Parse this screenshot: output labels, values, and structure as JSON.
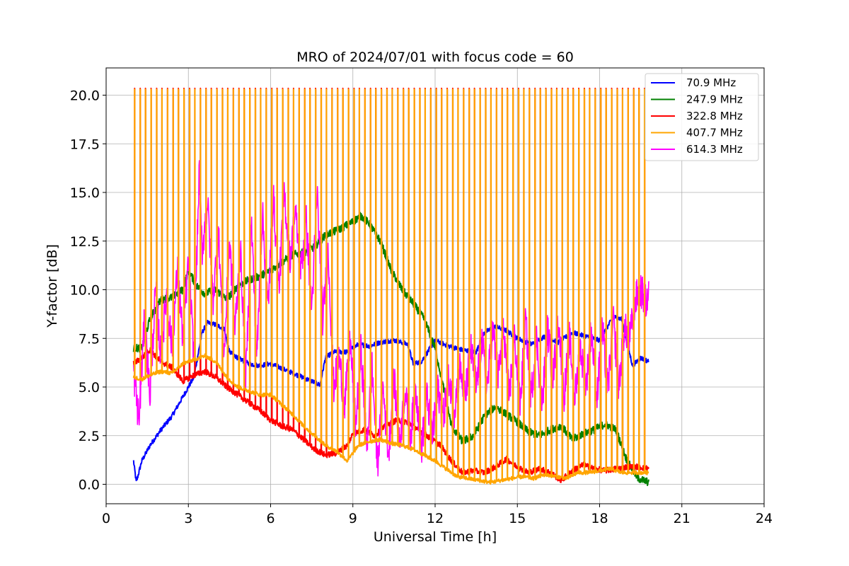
{
  "chart_data": {
    "type": "line",
    "title": "MRO of 2024/07/01 with focus code = 60",
    "xlabel": "Universal Time [h]",
    "ylabel": "Y-factor [dB]",
    "xlim": [
      0,
      24
    ],
    "ylim": [
      -1.0,
      21.4
    ],
    "xticks": [
      0,
      3,
      6,
      9,
      12,
      15,
      18,
      21,
      24
    ],
    "xtick_labels": [
      "0",
      "3",
      "6",
      "9",
      "12",
      "15",
      "18",
      "21",
      "24"
    ],
    "yticks": [
      0,
      2.5,
      5,
      7.5,
      10,
      12.5,
      15,
      17.5,
      20
    ],
    "ytick_labels": [
      "0.0",
      "2.5",
      "5.0",
      "7.5",
      "10.0",
      "12.5",
      "15.0",
      "17.5",
      "20.0"
    ],
    "grid": true,
    "legend_position": "top-right",
    "calibration_spikes": {
      "start_h": 1.0,
      "end_h": 19.8,
      "interval_h": 0.2,
      "count": 95,
      "peak_407": 20.3,
      "peak_322": 20.35,
      "peak_614": 11.75
    },
    "series": [
      {
        "name": "70.9 MHz",
        "color": "#0000ff",
        "x": [
          1.0,
          1.1,
          1.3,
          1.6,
          2.0,
          2.4,
          2.8,
          3.2,
          3.5,
          3.7,
          4.0,
          4.3,
          4.5,
          4.8,
          5.2,
          5.6,
          6.0,
          6.5,
          7.0,
          7.5,
          7.8,
          8.0,
          8.3,
          8.8,
          9.2,
          9.6,
          10.0,
          10.5,
          11.0,
          11.2,
          11.5,
          12.0,
          12.5,
          13.0,
          13.5,
          13.8,
          14.2,
          14.6,
          15.0,
          15.5,
          16.0,
          16.5,
          17.0,
          17.5,
          18.0,
          18.5,
          18.8,
          19.2,
          19.5,
          19.8
        ],
        "y": [
          1.2,
          0.1,
          1.2,
          2.0,
          2.8,
          3.5,
          4.5,
          5.5,
          7.8,
          8.3,
          8.2,
          8.0,
          6.8,
          6.5,
          6.2,
          6.1,
          6.2,
          5.9,
          5.6,
          5.3,
          5.1,
          6.5,
          6.8,
          6.8,
          7.2,
          7.1,
          7.3,
          7.4,
          7.2,
          6.2,
          6.3,
          7.4,
          7.1,
          6.9,
          6.8,
          7.8,
          8.1,
          7.9,
          7.5,
          7.2,
          7.6,
          7.3,
          7.8,
          7.6,
          7.4,
          8.6,
          8.5,
          6.1,
          6.5,
          6.3
        ]
      },
      {
        "name": "247.9 MHz",
        "color": "#008000",
        "x": [
          1.0,
          1.3,
          1.6,
          2.0,
          2.4,
          2.8,
          3.0,
          3.3,
          3.6,
          4.0,
          4.4,
          4.8,
          5.2,
          5.6,
          6.0,
          6.4,
          6.8,
          7.2,
          7.6,
          8.0,
          8.5,
          9.0,
          9.3,
          9.6,
          10.0,
          10.4,
          10.8,
          11.2,
          11.6,
          12.0,
          12.3,
          12.6,
          13.0,
          13.4,
          13.8,
          14.2,
          14.6,
          15.0,
          15.4,
          15.8,
          16.2,
          16.6,
          17.0,
          17.4,
          17.8,
          18.2,
          18.6,
          19.0,
          19.4,
          19.8
        ],
        "y": [
          7.0,
          7.0,
          8.5,
          9.5,
          9.6,
          10.0,
          11.0,
          10.2,
          9.8,
          10.0,
          9.5,
          10.2,
          10.5,
          10.7,
          11.0,
          11.4,
          11.8,
          11.9,
          12.2,
          12.8,
          13.1,
          13.5,
          13.8,
          13.4,
          12.5,
          11.0,
          10.0,
          9.3,
          8.5,
          7.0,
          5.0,
          3.0,
          2.2,
          2.5,
          3.5,
          4.0,
          3.6,
          3.2,
          2.7,
          2.5,
          2.8,
          3.0,
          2.3,
          2.6,
          2.8,
          3.1,
          2.8,
          1.2,
          0.3,
          0.1
        ]
      },
      {
        "name": "322.8 MHz",
        "color": "#ff0000",
        "x": [
          1.0,
          1.3,
          1.6,
          2.0,
          2.4,
          2.8,
          3.2,
          3.6,
          4.0,
          4.4,
          4.8,
          5.2,
          5.6,
          6.0,
          6.4,
          6.8,
          7.2,
          7.6,
          8.0,
          8.4,
          8.8,
          9.0,
          9.4,
          9.8,
          10.2,
          10.6,
          11.0,
          11.4,
          11.8,
          12.2,
          12.6,
          13.0,
          13.4,
          13.8,
          14.2,
          14.6,
          15.0,
          15.4,
          15.8,
          16.2,
          16.6,
          17.0,
          17.4,
          17.8,
          18.2,
          18.6,
          19.0,
          19.4,
          19.8
        ],
        "y": [
          6.2,
          6.5,
          6.9,
          6.3,
          6.0,
          5.3,
          5.6,
          5.8,
          5.5,
          5.0,
          4.6,
          4.2,
          3.8,
          3.3,
          3.0,
          2.8,
          2.3,
          1.8,
          1.5,
          1.6,
          2.0,
          2.6,
          2.8,
          2.5,
          3.0,
          3.3,
          3.2,
          2.8,
          2.4,
          2.0,
          1.2,
          0.6,
          0.7,
          0.6,
          0.9,
          1.3,
          0.9,
          0.6,
          0.8,
          0.6,
          0.2,
          0.7,
          1.0,
          0.8,
          0.7,
          0.8,
          0.9,
          0.9,
          0.8
        ]
      },
      {
        "name": "407.7 MHz",
        "color": "#ffa500",
        "x": [
          1.0,
          1.3,
          1.6,
          2.0,
          2.4,
          2.8,
          3.2,
          3.6,
          4.0,
          4.4,
          4.8,
          5.2,
          5.6,
          6.0,
          6.4,
          6.8,
          7.2,
          7.6,
          8.0,
          8.4,
          8.8,
          9.2,
          9.6,
          10.0,
          10.4,
          10.8,
          11.2,
          11.6,
          12.0,
          12.4,
          12.8,
          13.2,
          13.6,
          14.0,
          14.4,
          14.8,
          15.2,
          15.6,
          16.0,
          16.4,
          16.8,
          17.2,
          17.6,
          18.0,
          18.4,
          18.8,
          19.2,
          19.6,
          19.8
        ],
        "y": [
          5.5,
          5.4,
          5.6,
          5.8,
          5.7,
          6.2,
          6.4,
          6.6,
          6.3,
          5.5,
          5.0,
          4.8,
          4.6,
          4.6,
          4.1,
          3.6,
          3.0,
          2.5,
          2.0,
          1.7,
          1.2,
          2.0,
          2.2,
          2.3,
          2.1,
          2.0,
          1.8,
          1.5,
          1.2,
          0.8,
          0.4,
          0.3,
          0.2,
          0.1,
          0.2,
          0.3,
          0.4,
          0.3,
          0.5,
          0.4,
          0.3,
          0.6,
          0.6,
          0.7,
          0.8,
          0.6,
          0.6,
          0.6,
          0.6
        ]
      },
      {
        "name": "614.3 MHz",
        "color": "#ff00ff",
        "x": [
          1.0,
          1.2,
          1.4,
          1.6,
          1.8,
          2.0,
          2.2,
          2.4,
          2.6,
          2.8,
          3.0,
          3.2,
          3.4,
          3.5,
          3.7,
          3.9,
          4.1,
          4.3,
          4.5,
          4.7,
          4.9,
          5.1,
          5.3,
          5.5,
          5.7,
          5.9,
          6.1,
          6.3,
          6.5,
          6.7,
          6.9,
          7.1,
          7.3,
          7.5,
          7.7,
          7.9,
          8.1,
          8.3,
          8.5,
          8.7,
          8.9,
          9.1,
          9.3,
          9.5,
          9.7,
          9.9,
          10.1,
          10.3,
          10.5,
          10.7,
          10.9,
          11.1,
          11.3,
          11.5,
          11.7,
          11.9,
          12.1,
          12.3,
          12.5,
          12.7,
          12.9,
          13.1,
          13.3,
          13.5,
          13.7,
          13.9,
          14.1,
          14.3,
          14.5,
          14.7,
          14.9,
          15.1,
          15.3,
          15.5,
          15.7,
          15.9,
          16.1,
          16.3,
          16.5,
          16.7,
          16.9,
          17.1,
          17.3,
          17.5,
          17.7,
          17.9,
          18.1,
          18.3,
          18.5,
          18.7,
          18.9,
          19.1,
          19.3,
          19.5,
          19.7,
          19.8
        ],
        "y": [
          5.8,
          3.2,
          8.5,
          4.5,
          10.0,
          6.5,
          9.8,
          7.0,
          11.0,
          7.5,
          11.5,
          6.5,
          16.2,
          12.0,
          14.5,
          9.5,
          13.0,
          6.5,
          12.5,
          8.0,
          12.0,
          5.5,
          13.5,
          6.5,
          14.0,
          9.0,
          14.8,
          10.0,
          15.0,
          11.5,
          14.0,
          11.0,
          13.5,
          9.0,
          15.0,
          8.5,
          12.0,
          5.0,
          6.5,
          4.0,
          7.5,
          3.0,
          7.0,
          1.8,
          6.0,
          1.0,
          5.0,
          1.5,
          5.5,
          2.0,
          4.8,
          2.5,
          5.0,
          1.8,
          4.5,
          2.5,
          4.8,
          3.5,
          5.5,
          3.8,
          6.0,
          4.5,
          7.0,
          5.0,
          7.5,
          5.0,
          8.0,
          5.5,
          8.0,
          4.5,
          7.5,
          4.0,
          8.5,
          4.5,
          7.5,
          4.0,
          8.0,
          5.5,
          8.5,
          4.5,
          7.5,
          4.5,
          7.0,
          5.0,
          8.0,
          4.5,
          8.0,
          4.8,
          8.5,
          5.0,
          8.0,
          7.5,
          9.5,
          10.0,
          9.3,
          10.0
        ]
      }
    ]
  }
}
